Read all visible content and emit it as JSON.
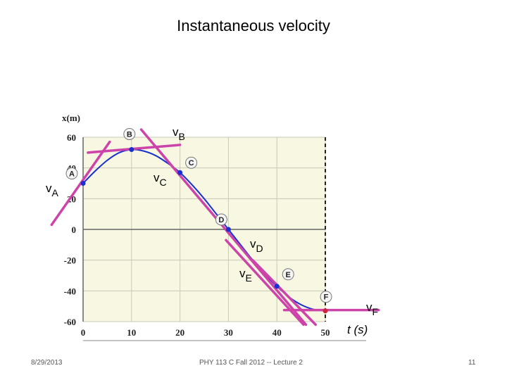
{
  "slide": {
    "title": "Instantaneous velocity",
    "date": "8/29/2013",
    "course": "PHY 113 C  Fall 2012 -- Lecture 2",
    "page_number": "11"
  },
  "colors": {
    "curve": "#1a2fd0",
    "tangent": "#cc44aa",
    "plot_background": "#f7f7e2",
    "point": "#1a2fd0",
    "point_f": "#d0243c"
  },
  "chart_data": {
    "type": "line",
    "title": "Instantaneous velocity",
    "xlabel": "t (s)",
    "ylabel": "x(m)",
    "xlim": [
      0,
      50
    ],
    "ylim": [
      -60,
      60
    ],
    "xticks": [
      0,
      10,
      20,
      30,
      40,
      50
    ],
    "yticks": [
      60,
      40,
      20,
      0,
      -20,
      -40,
      -60
    ],
    "x_tick_labels": [
      "0",
      "10",
      "20",
      "30",
      "40",
      "50"
    ],
    "y_tick_labels": [
      "60",
      "40",
      "20",
      "0",
      "-20",
      "-40",
      "-60"
    ],
    "curve": {
      "t": [
        0,
        2.5,
        5,
        7.5,
        10,
        12.5,
        15,
        17.5,
        20,
        22.5,
        25,
        27.5,
        30,
        32.5,
        35,
        37.5,
        40,
        42.5,
        45,
        47.5,
        50
      ],
      "x": [
        30,
        38,
        45,
        50,
        52,
        51,
        48,
        43,
        37,
        29,
        20,
        10,
        0,
        -10,
        -20,
        -29,
        -37,
        -44,
        -49,
        -52,
        -53
      ]
    },
    "points": [
      {
        "label": "A",
        "t": 0,
        "x": 30
      },
      {
        "label": "B",
        "t": 10,
        "x": 52
      },
      {
        "label": "C",
        "t": 20,
        "x": 37
      },
      {
        "label": "D",
        "t": 30,
        "x": 0
      },
      {
        "label": "E",
        "t": 40,
        "x": -37
      },
      {
        "label": "F",
        "t": 50,
        "x": -53
      }
    ],
    "tangent_labels": [
      {
        "letter": "v",
        "sub": "A"
      },
      {
        "letter": "v",
        "sub": "B"
      },
      {
        "letter": "v",
        "sub": "C"
      },
      {
        "letter": "v",
        "sub": "D"
      },
      {
        "letter": "v",
        "sub": "E"
      },
      {
        "letter": "v",
        "sub": "F"
      }
    ],
    "tangents": [
      {
        "name": "A",
        "t1": -6.5,
        "x1": 3,
        "t2": 5.5,
        "x2": 57
      },
      {
        "name": "B",
        "t1": 1,
        "x1": 50,
        "t2": 20,
        "x2": 55
      },
      {
        "name": "C",
        "t1": 12,
        "x1": 65,
        "t2": 46,
        "x2": -62
      },
      {
        "name": "D",
        "t1": 29.5,
        "x1": -7,
        "t2": 45.5,
        "x2": -62
      },
      {
        "name": "E",
        "t1": 35,
        "x1": -20,
        "t2": 48,
        "x2": -62
      },
      {
        "name": "F",
        "t1": 41.5,
        "x1": -52.5,
        "t2": 61,
        "x2": -52.5
      }
    ]
  }
}
